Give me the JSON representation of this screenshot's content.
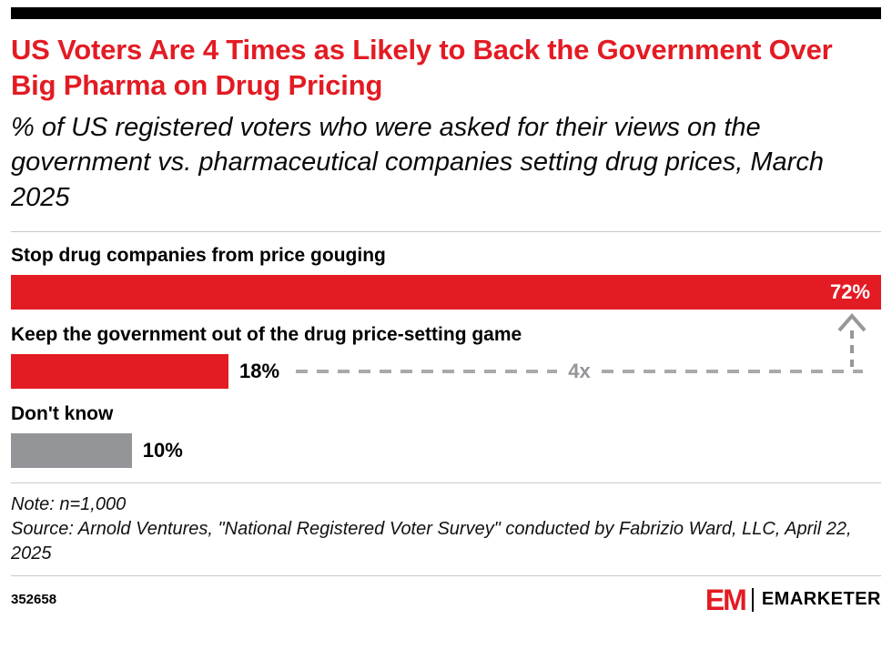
{
  "header": {
    "title": "US Voters Are 4 Times as Likely to Back the Government Over Big Pharma on Drug Pricing",
    "subtitle": "% of US registered voters who were asked for their views on the government vs. pharmaceutical companies setting drug prices, March 2025"
  },
  "chart_data": {
    "type": "bar",
    "orientation": "horizontal",
    "title": "US Voters Are 4 Times as Likely to Back the Government Over Big Pharma on Drug Pricing",
    "categories": [
      "Stop drug companies from price gouging",
      "Keep the government out of the drug price-setting game",
      "Don't know"
    ],
    "values": [
      72,
      18,
      10
    ],
    "value_labels": [
      "72%",
      "18%",
      "10%"
    ],
    "bar_colors": [
      "#e31b23",
      "#e31b23",
      "#939598"
    ],
    "xlim": [
      0,
      72
    ],
    "annotation": "4x",
    "grid": false,
    "legend": "none"
  },
  "notes": {
    "note": "Note: n=1,000",
    "source": "Source: Arnold Ventures, \"National Registered Voter Survey\" conducted by Fabrizio Ward, LLC, April 22, 2025"
  },
  "footer": {
    "chart_number": "352658",
    "logo_mark": "EM",
    "brand": "EMARKETER"
  },
  "colors": {
    "accent_red": "#e31b23",
    "bar_gray": "#939598",
    "annotation_gray": "#96989a"
  }
}
